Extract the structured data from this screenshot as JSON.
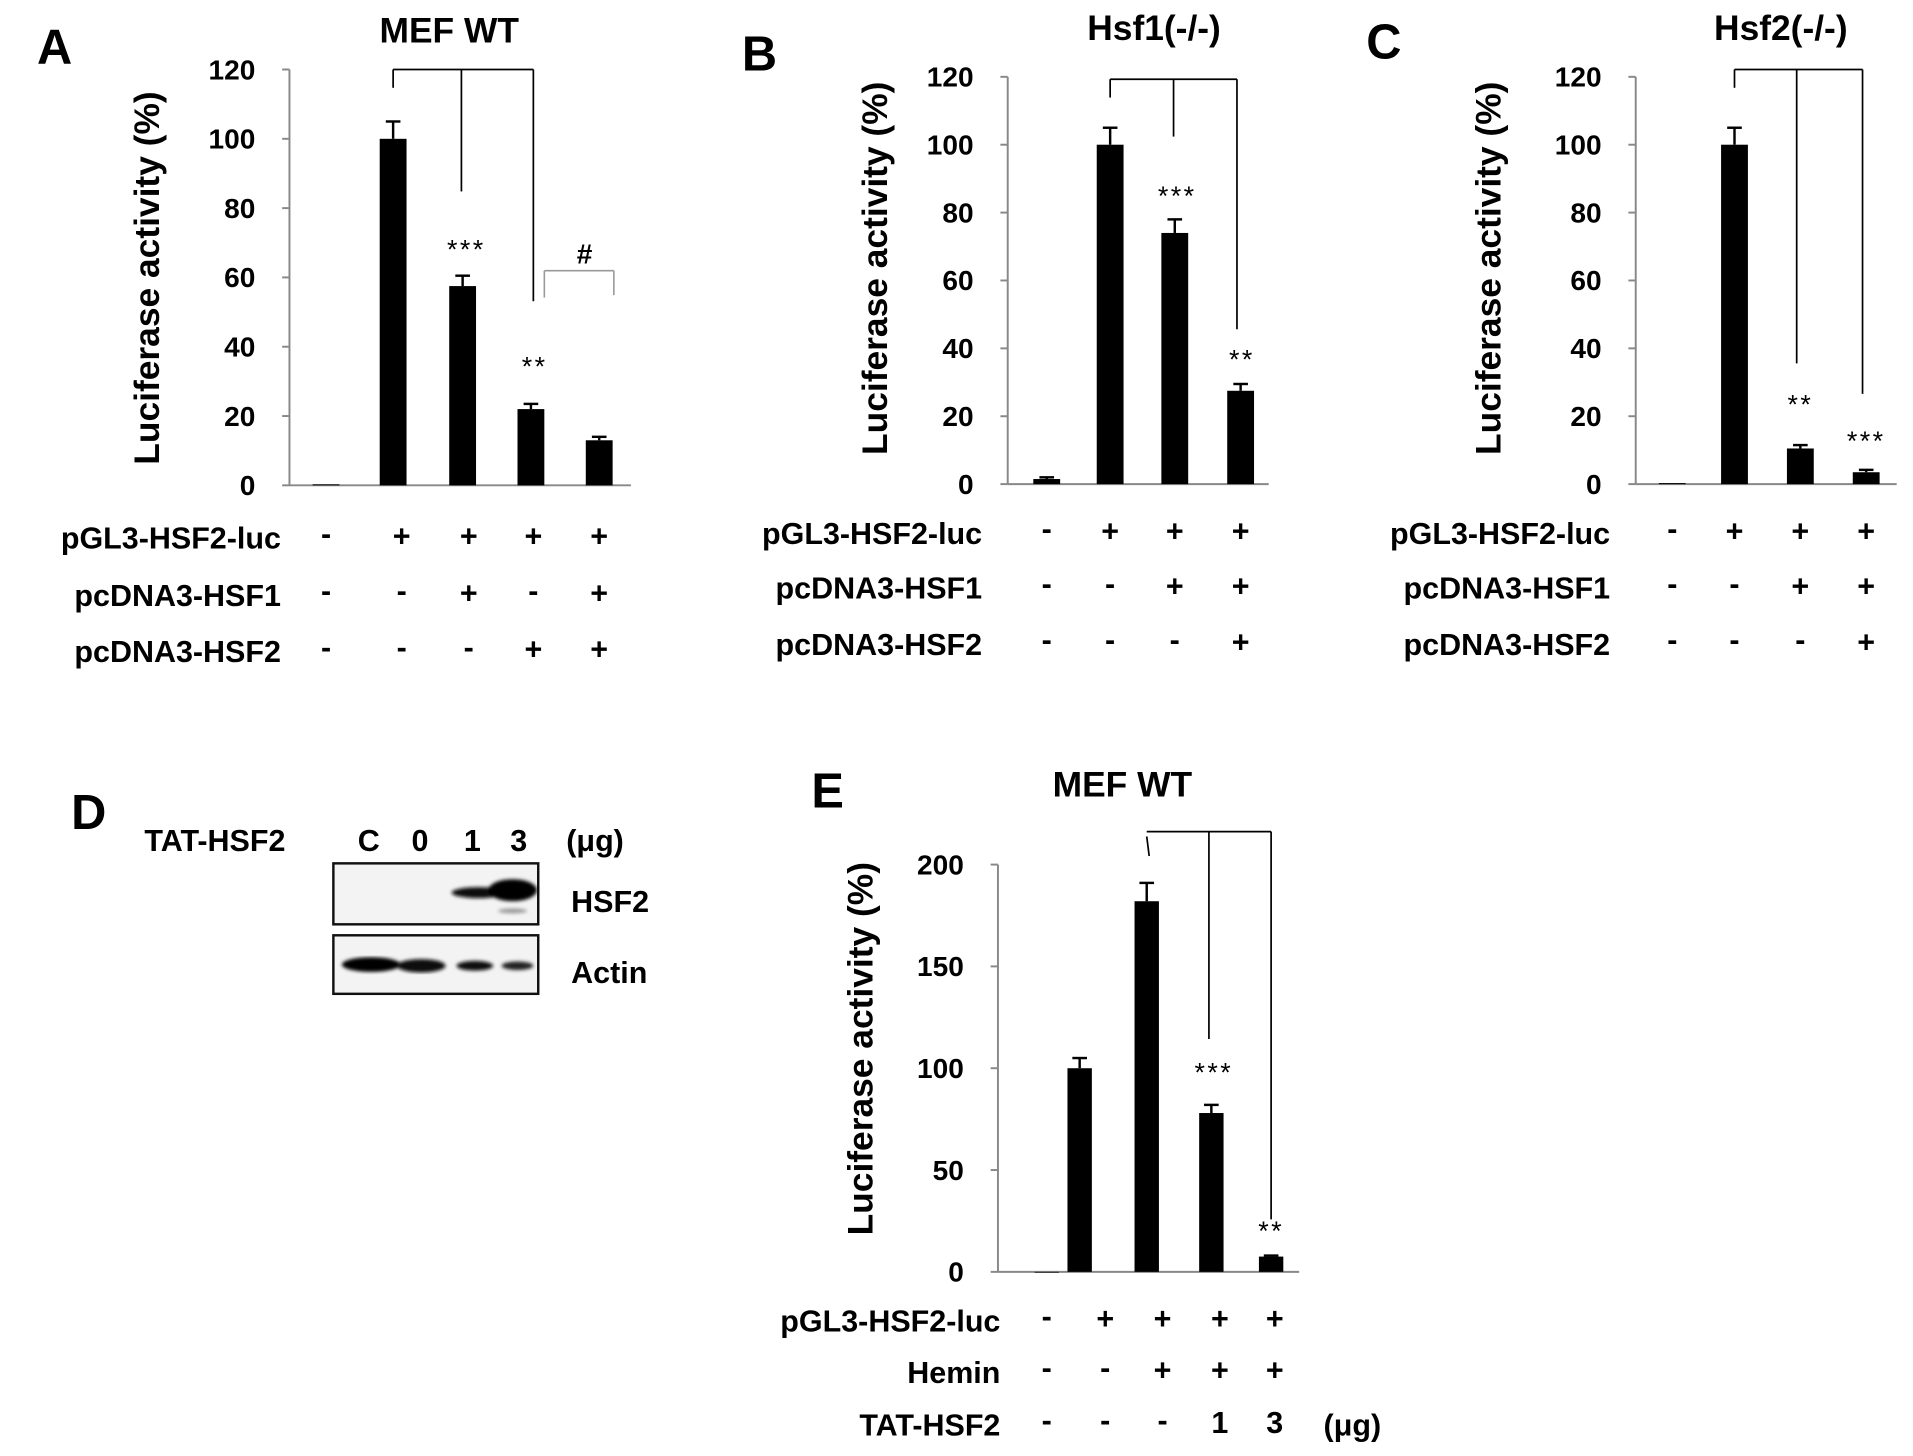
{
  "chart_data": [
    {
      "type": "bar",
      "panel": "A",
      "title": "MEF WT",
      "ylabel": "Luciferase activity (%)",
      "ylim": [
        0,
        120
      ],
      "yticks": [
        "0",
        "20",
        "40",
        "60",
        "80",
        "100",
        "120"
      ],
      "values": [
        0.3,
        100,
        57.5,
        22,
        13
      ],
      "errors": [
        0,
        5,
        3,
        1.5,
        1
      ],
      "conditions": [
        {
          "label": "pGL3-HSF2-luc",
          "marks": [
            "-",
            "+",
            "+",
            "+",
            "+"
          ]
        },
        {
          "label": "pcDNA3-HSF1",
          "marks": [
            "-",
            "-",
            "+",
            "-",
            "+"
          ]
        },
        {
          "label": "pcDNA3-HSF2",
          "marks": [
            "-",
            "-",
            "-",
            "+",
            "+"
          ]
        }
      ],
      "annotations": [
        "***",
        "**",
        "#"
      ]
    },
    {
      "type": "bar",
      "panel": "B",
      "title": "Hsf1(-/-)",
      "ylabel": "Luciferase activity (%)",
      "ylim": [
        0,
        120
      ],
      "yticks": [
        "0",
        "20",
        "40",
        "60",
        "80",
        "100",
        "120"
      ],
      "values": [
        1.5,
        100,
        74,
        27.5
      ],
      "errors": [
        0.5,
        5,
        4,
        2
      ],
      "conditions": [
        {
          "label": "pGL3-HSF2-luc",
          "marks": [
            "-",
            "+",
            "+",
            "+"
          ]
        },
        {
          "label": "pcDNA3-HSF1",
          "marks": [
            "-",
            "-",
            "+",
            "+"
          ]
        },
        {
          "label": "pcDNA3-HSF2",
          "marks": [
            "-",
            "-",
            "-",
            "+"
          ]
        }
      ],
      "annotations": [
        "***",
        "**"
      ]
    },
    {
      "type": "bar",
      "panel": "C",
      "title": "Hsf2(-/-)",
      "ylabel": "Luciferase activity (%)",
      "ylim": [
        0,
        120
      ],
      "yticks": [
        "0",
        "20",
        "40",
        "60",
        "80",
        "100",
        "120"
      ],
      "values": [
        0.3,
        100,
        10.5,
        3.5
      ],
      "errors": [
        0,
        5,
        1,
        0.7
      ],
      "conditions": [
        {
          "label": "pGL3-HSF2-luc",
          "marks": [
            "-",
            "+",
            "+",
            "+"
          ]
        },
        {
          "label": "pcDNA3-HSF1",
          "marks": [
            "-",
            "-",
            "+",
            "+"
          ]
        },
        {
          "label": "pcDNA3-HSF2",
          "marks": [
            "-",
            "-",
            "-",
            "+"
          ]
        }
      ],
      "annotations": [
        "**",
        "***"
      ]
    },
    {
      "type": "bar",
      "panel": "E",
      "title": "MEF WT",
      "ylabel": "Luciferase activity (%)",
      "ylim": [
        0,
        200
      ],
      "yticks": [
        "0",
        "50",
        "100",
        "150",
        "200"
      ],
      "values": [
        0,
        100,
        182,
        78,
        7.5
      ],
      "errors": [
        0,
        5,
        9,
        4,
        0.5
      ],
      "conditions": [
        {
          "label": "pGL3-HSF2-luc",
          "marks": [
            "-",
            "+",
            "+",
            "+",
            "+"
          ]
        },
        {
          "label": "Hemin",
          "marks": [
            "-",
            "-",
            "+",
            "+",
            "+"
          ]
        },
        {
          "label": "TAT-HSF2",
          "marks": [
            "-",
            "-",
            "-",
            "1",
            "3"
          ]
        }
      ],
      "unit": "(μg)",
      "annotations": [
        "***",
        "**"
      ]
    }
  ],
  "blot": {
    "panel": "D",
    "row_label": "TAT-HSF2",
    "lanes": [
      "C",
      "0",
      "1",
      "3"
    ],
    "unit": "(μg)",
    "bands": [
      "HSF2",
      "Actin"
    ]
  }
}
